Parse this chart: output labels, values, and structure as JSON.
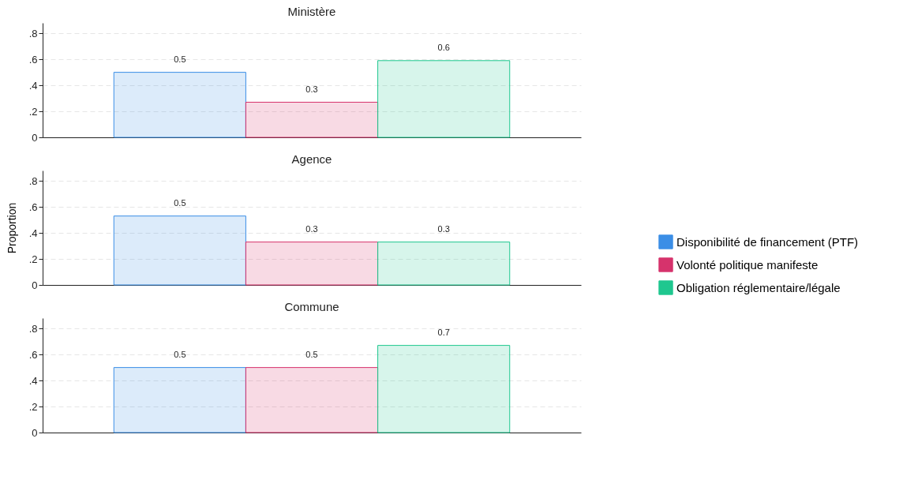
{
  "chart_data": [
    {
      "type": "bar",
      "title": "Ministère",
      "legend": "right",
      "categories": [
        null
      ],
      "ylim": [
        0,
        0.88
      ],
      "yticks": [
        {
          "value": 0,
          "label": "0"
        },
        {
          "value": 0.2,
          "label": ".2"
        },
        {
          "value": 0.4,
          "label": ".4"
        },
        {
          "value": 0.6,
          "label": ".6"
        },
        {
          "value": 0.8,
          "label": ".8"
        }
      ],
      "grid": "y",
      "series": [
        {
          "name": "Disponibilité de financement (PTF)",
          "color": "#3b8ee6",
          "values": [
            0.5
          ],
          "value_labels": [
            "0.5"
          ]
        },
        {
          "name": "Volonté politique manifeste",
          "color": "#d6336c",
          "values": [
            0.27
          ],
          "value_labels": [
            "0.3"
          ]
        },
        {
          "name": "Obligation réglementaire/légale",
          "color": "#1fc78f",
          "values": [
            0.59
          ],
          "value_labels": [
            "0.6"
          ]
        }
      ]
    },
    {
      "type": "bar",
      "title": "Agence",
      "ylabel": "Proportion",
      "legend": "right",
      "categories": [
        null
      ],
      "ylim": [
        0,
        0.88
      ],
      "yticks": [
        {
          "value": 0,
          "label": "0"
        },
        {
          "value": 0.2,
          "label": ".2"
        },
        {
          "value": 0.4,
          "label": ".4"
        },
        {
          "value": 0.6,
          "label": ".6"
        },
        {
          "value": 0.8,
          "label": ".8"
        }
      ],
      "grid": "y",
      "series": [
        {
          "name": "Disponibilité de financement (PTF)",
          "color": "#3b8ee6",
          "values": [
            0.53
          ],
          "value_labels": [
            "0.5"
          ]
        },
        {
          "name": "Volonté politique manifeste",
          "color": "#d6336c",
          "values": [
            0.33
          ],
          "value_labels": [
            "0.3"
          ]
        },
        {
          "name": "Obligation réglementaire/légale",
          "color": "#1fc78f",
          "values": [
            0.33
          ],
          "value_labels": [
            "0.3"
          ]
        }
      ]
    },
    {
      "type": "bar",
      "title": "Commune",
      "legend": "right",
      "categories": [
        null
      ],
      "ylim": [
        0,
        0.88
      ],
      "yticks": [
        {
          "value": 0,
          "label": "0"
        },
        {
          "value": 0.2,
          "label": ".2"
        },
        {
          "value": 0.4,
          "label": ".4"
        },
        {
          "value": 0.6,
          "label": ".6"
        },
        {
          "value": 0.8,
          "label": ".8"
        }
      ],
      "grid": "y",
      "series": [
        {
          "name": "Disponibilité de financement (PTF)",
          "color": "#3b8ee6",
          "values": [
            0.5
          ],
          "value_labels": [
            "0.5"
          ]
        },
        {
          "name": "Volonté politique manifeste",
          "color": "#d6336c",
          "values": [
            0.5
          ],
          "value_labels": [
            "0.5"
          ]
        },
        {
          "name": "Obligation réglementaire/légale",
          "color": "#1fc78f",
          "values": [
            0.67
          ],
          "value_labels": [
            "0.7"
          ]
        }
      ]
    }
  ]
}
